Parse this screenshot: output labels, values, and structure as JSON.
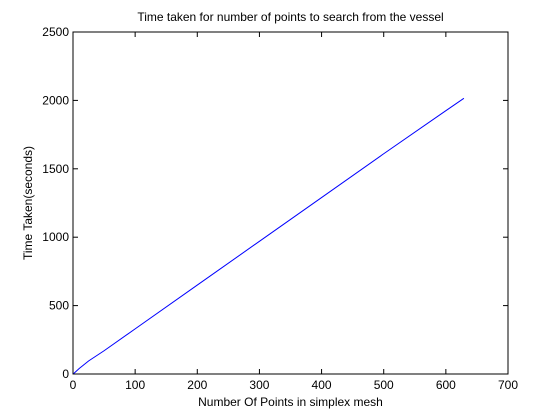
{
  "chart_data": {
    "type": "line",
    "title": "Time taken for number of points to search from the vessel",
    "xlabel": "Number Of Points in simplex mesh",
    "ylabel": "Time Taken(seconds)",
    "xlim": [
      0,
      700
    ],
    "ylim": [
      0,
      2500
    ],
    "xticks": [
      0,
      100,
      200,
      300,
      400,
      500,
      600,
      700
    ],
    "yticks": [
      0,
      500,
      1000,
      1500,
      2000,
      2500
    ],
    "grid": false,
    "legend": "none",
    "series": [
      {
        "color": "#0000ff",
        "x": [
          1,
          10,
          25,
          50,
          100,
          200,
          300,
          400,
          500,
          600,
          629
        ],
        "y": [
          3,
          40,
          95,
          170,
          330,
          650,
          970,
          1290,
          1610,
          1925,
          2015
        ]
      }
    ]
  }
}
